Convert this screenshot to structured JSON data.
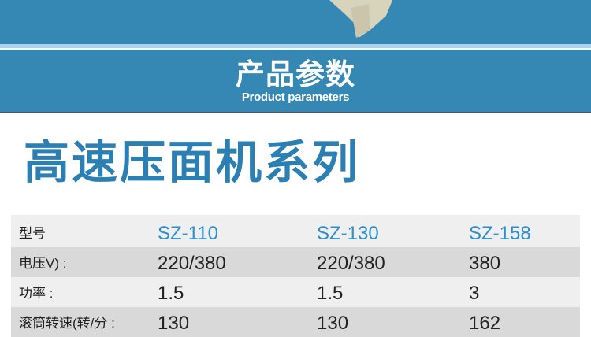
{
  "header": {
    "title_cn": "产品参数",
    "title_en": "Product parameters"
  },
  "section_title": "高速压面机系列",
  "table": {
    "rows": [
      {
        "label": "型号",
        "values": [
          "SZ-110",
          "SZ-130",
          "SZ-158"
        ]
      },
      {
        "label": "电压V) :",
        "values": [
          "220/380",
          "220/380",
          "380"
        ]
      },
      {
        "label": "功率 :",
        "values": [
          "1.5",
          "1.5",
          "3"
        ]
      },
      {
        "label": "滚筒转速(转/分 :",
        "values": [
          "130",
          "130",
          "162"
        ]
      }
    ]
  },
  "colors": {
    "band": "#3688b4",
    "title": "#2c7fb3",
    "model": "#2a8ed0"
  }
}
